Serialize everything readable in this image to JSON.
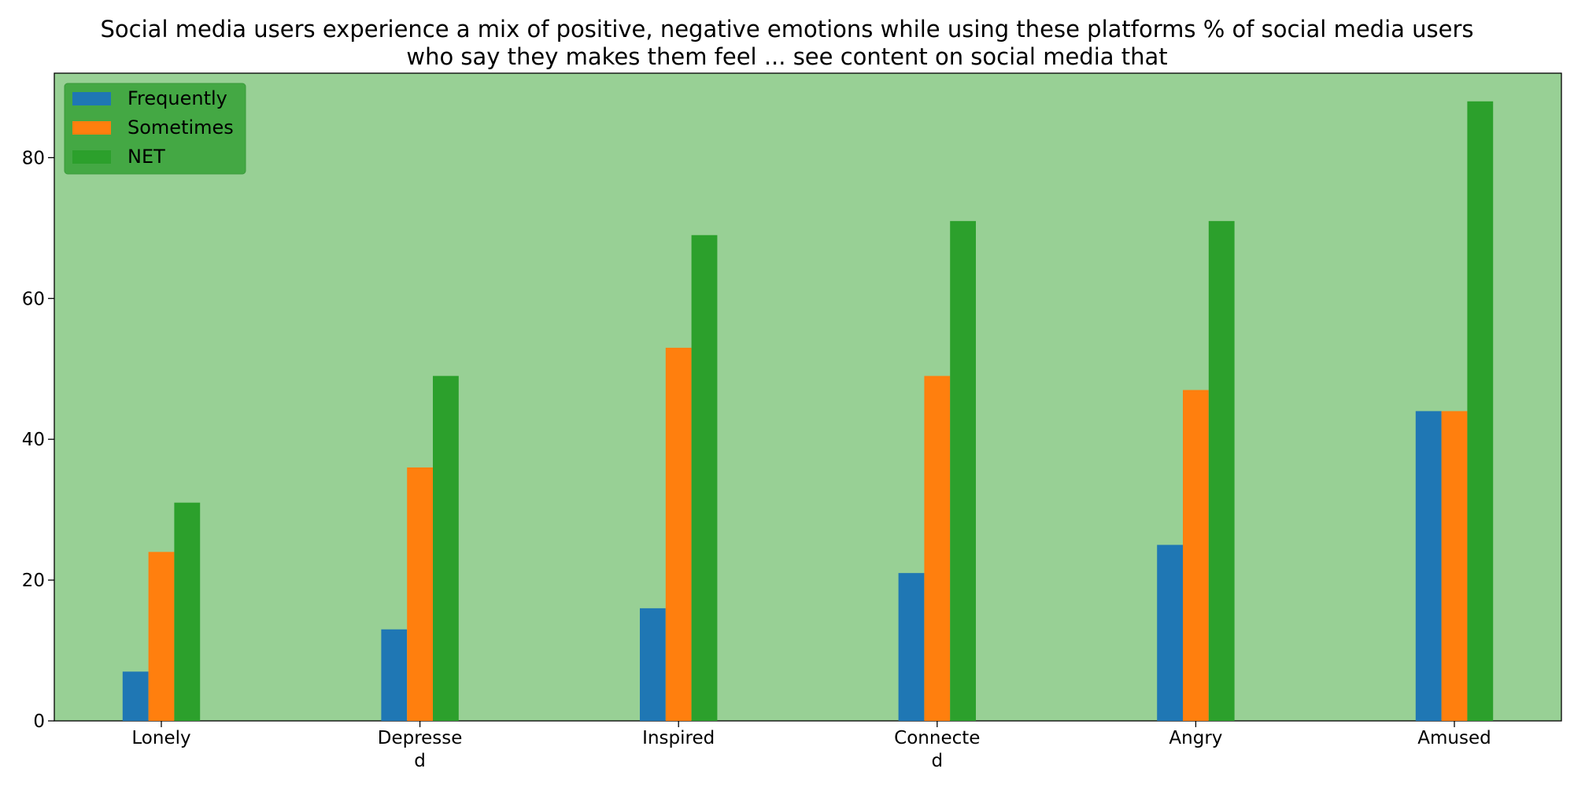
{
  "chart_data": {
    "type": "bar",
    "title_lines": [
      "Social media users experience a mix of positive, negative emotions while using these platforms % of social media users",
      "who say they makes them feel ... see content on social media that"
    ],
    "categories": [
      [
        "Lonely"
      ],
      [
        "Depresse",
        "d"
      ],
      [
        "Inspired"
      ],
      [
        "Connecte",
        "d"
      ],
      [
        "Angry"
      ],
      [
        "Amused"
      ]
    ],
    "series": [
      {
        "name": "Frequently",
        "color": "#1f77b4",
        "values": [
          7,
          13,
          16,
          21,
          25,
          44
        ]
      },
      {
        "name": "Sometimes",
        "color": "#ff7f0e",
        "values": [
          24,
          36,
          53,
          49,
          47,
          44
        ]
      },
      {
        "name": "NET",
        "color": "#2ca02c",
        "values": [
          31,
          49,
          69,
          71,
          71,
          88
        ]
      }
    ],
    "ylim": [
      0,
      92
    ],
    "yticks": [
      0,
      20,
      40,
      60,
      80
    ],
    "xlabel": "",
    "ylabel": "",
    "grid": false,
    "legend_position": "top-left",
    "plot_background": "#98d095",
    "legend_background": "#44a844"
  }
}
